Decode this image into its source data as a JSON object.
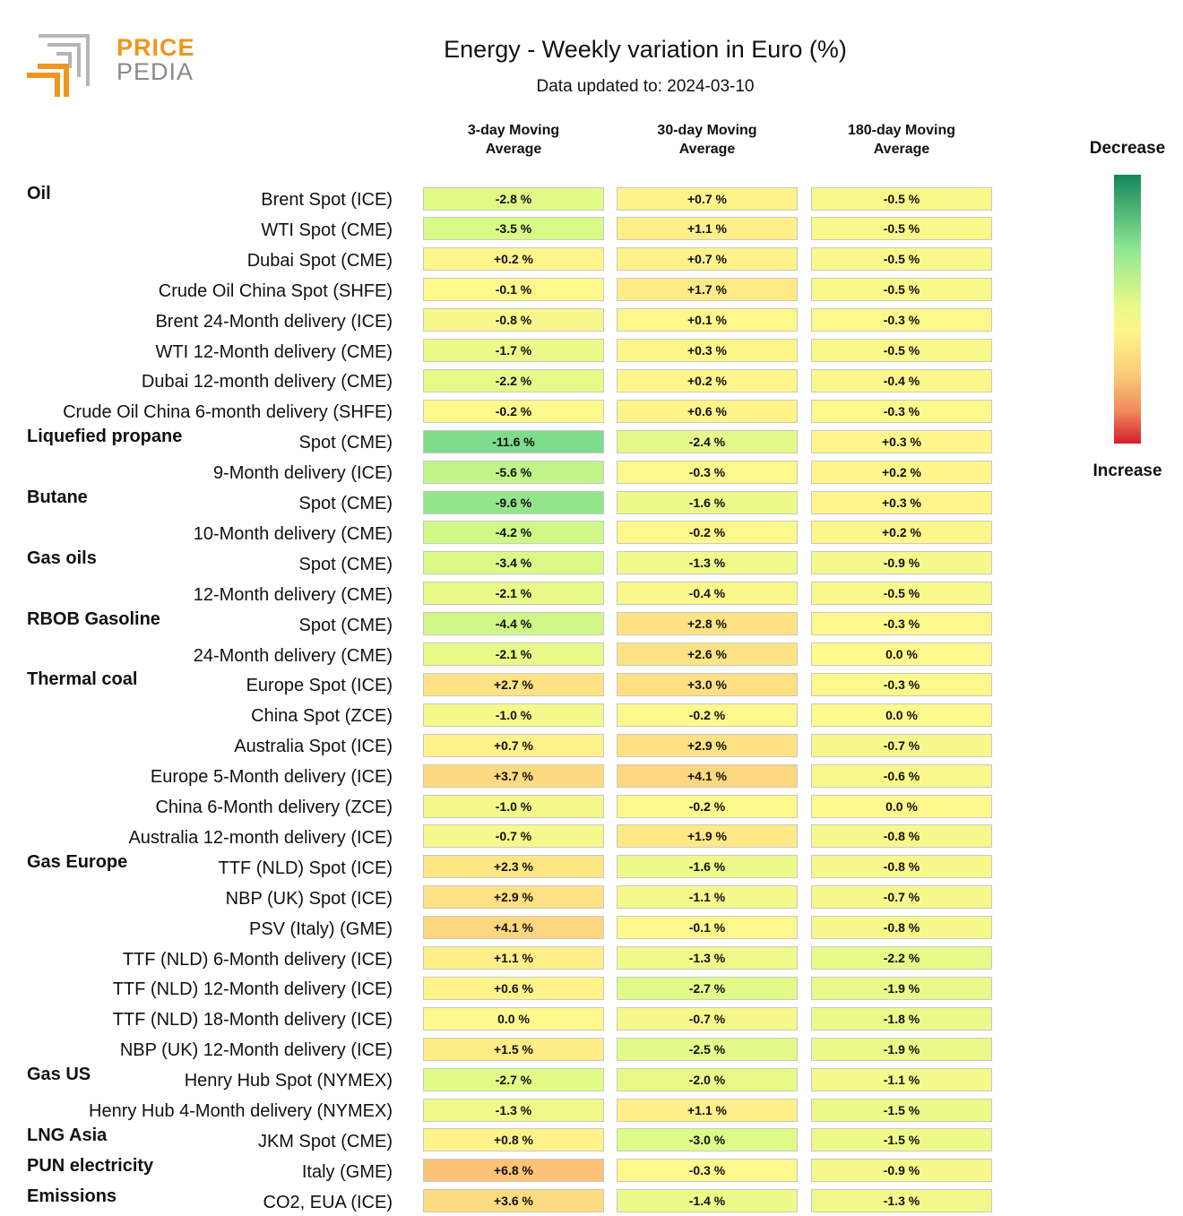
{
  "logo": {
    "line1": "PRICE",
    "line2": "PEDIA"
  },
  "header": {
    "title": "Energy - Weekly variation in Euro (%)",
    "subtitle": "Data updated to: 2024-03-10"
  },
  "columns": [
    {
      "line1": "3-day Moving",
      "line2": "Average"
    },
    {
      "line1": "30-day Moving",
      "line2": "Average"
    },
    {
      "line1": "180-day Moving",
      "line2": "Average"
    }
  ],
  "legend": {
    "top_label": "Decrease",
    "bottom_label": "Increase",
    "top_color": "#14875a",
    "mid_color": "#fff689",
    "bottom_color": "#d41d2a"
  },
  "chart_data": {
    "type": "table",
    "title": "Energy - Weekly variation in Euro (%)",
    "rows": [
      {
        "group": "Oil",
        "label": "Brent Spot (ICE)",
        "values": [
          "-2.8 %",
          "+0.7 %",
          "-0.5 %"
        ]
      },
      {
        "group": "",
        "label": "WTI Spot (CME)",
        "values": [
          "-3.5 %",
          "+1.1 %",
          "-0.5 %"
        ]
      },
      {
        "group": "",
        "label": "Dubai Spot (CME)",
        "values": [
          "+0.2 %",
          "+0.7 %",
          "-0.5 %"
        ]
      },
      {
        "group": "",
        "label": "Crude Oil China Spot (SHFE)",
        "values": [
          "-0.1 %",
          "+1.7 %",
          "-0.5 %"
        ]
      },
      {
        "group": "",
        "label": "Brent 24-Month delivery (ICE)",
        "values": [
          "-0.8 %",
          "+0.1 %",
          "-0.3 %"
        ]
      },
      {
        "group": "",
        "label": "WTI 12-Month delivery (CME)",
        "values": [
          "-1.7 %",
          "+0.3 %",
          "-0.5 %"
        ]
      },
      {
        "group": "",
        "label": "Dubai 12-month delivery (CME)",
        "values": [
          "-2.2 %",
          "+0.2 %",
          "-0.4 %"
        ]
      },
      {
        "group": "",
        "label": "Crude Oil China 6-month delivery (SHFE)",
        "values": [
          "-0.2 %",
          "+0.6 %",
          "-0.3 %"
        ]
      },
      {
        "group": "Liquefied propane",
        "label": "Spot (CME)",
        "values": [
          "-11.6 %",
          "-2.4 %",
          "+0.3 %"
        ]
      },
      {
        "group": "",
        "label": "9-Month delivery (ICE)",
        "values": [
          "-5.6 %",
          "-0.3 %",
          "+0.2 %"
        ]
      },
      {
        "group": "Butane",
        "label": "Spot (CME)",
        "values": [
          "-9.6 %",
          "-1.6 %",
          "+0.3 %"
        ]
      },
      {
        "group": "",
        "label": "10-Month delivery (CME)",
        "values": [
          "-4.2 %",
          "-0.2 %",
          "+0.2 %"
        ]
      },
      {
        "group": "Gas oils",
        "label": "Spot (CME)",
        "values": [
          "-3.4 %",
          "-1.3 %",
          "-0.9 %"
        ]
      },
      {
        "group": "",
        "label": "12-Month delivery (CME)",
        "values": [
          "-2.1 %",
          "-0.4 %",
          "-0.5 %"
        ]
      },
      {
        "group": "RBOB Gasoline",
        "label": "Spot (CME)",
        "values": [
          "-4.4 %",
          "+2.8 %",
          "-0.3 %"
        ]
      },
      {
        "group": "",
        "label": "24-Month delivery (CME)",
        "values": [
          "-2.1 %",
          "+2.6 %",
          "0.0 %"
        ]
      },
      {
        "group": "Thermal coal",
        "label": "Europe Spot (ICE)",
        "values": [
          "+2.7 %",
          "+3.0 %",
          "-0.3 %"
        ]
      },
      {
        "group": "",
        "label": "China Spot (ZCE)",
        "values": [
          "-1.0 %",
          "-0.2 %",
          "0.0 %"
        ]
      },
      {
        "group": "",
        "label": "Australia Spot (ICE)",
        "values": [
          "+0.7 %",
          "+2.9 %",
          "-0.7 %"
        ]
      },
      {
        "group": "",
        "label": "Europe 5-Month delivery (ICE)",
        "values": [
          "+3.7 %",
          "+4.1 %",
          "-0.6 %"
        ]
      },
      {
        "group": "",
        "label": "China 6-Month delivery (ZCE)",
        "values": [
          "-1.0 %",
          "-0.2 %",
          "0.0 %"
        ]
      },
      {
        "group": "",
        "label": "Australia 12-month delivery (ICE)",
        "values": [
          "-0.7 %",
          "+1.9 %",
          "-0.8 %"
        ]
      },
      {
        "group": "Gas Europe",
        "label": "TTF (NLD) Spot (ICE)",
        "values": [
          "+2.3 %",
          "-1.6 %",
          "-0.8 %"
        ]
      },
      {
        "group": "",
        "label": "NBP (UK) Spot (ICE)",
        "values": [
          "+2.9 %",
          "-1.1 %",
          "-0.7 %"
        ]
      },
      {
        "group": "",
        "label": "PSV (Italy) (GME)",
        "values": [
          "+4.1 %",
          "-0.1 %",
          "-0.8 %"
        ]
      },
      {
        "group": "",
        "label": "TTF (NLD) 6-Month delivery (ICE)",
        "values": [
          "+1.1 %",
          "-1.3 %",
          "-2.2 %"
        ]
      },
      {
        "group": "",
        "label": "TTF (NLD) 12-Month delivery (ICE)",
        "values": [
          "+0.6 %",
          "-2.7 %",
          "-1.9 %"
        ]
      },
      {
        "group": "",
        "label": "TTF (NLD) 18-Month delivery (ICE)",
        "values": [
          "0.0 %",
          "-0.7 %",
          "-1.8 %"
        ]
      },
      {
        "group": "",
        "label": "NBP (UK) 12-Month delivery (ICE)",
        "values": [
          "+1.5 %",
          "-2.5 %",
          "-1.9 %"
        ]
      },
      {
        "group": "Gas US",
        "label": "Henry Hub Spot (NYMEX)",
        "values": [
          "-2.7 %",
          "-2.0 %",
          "-1.1 %"
        ]
      },
      {
        "group": "",
        "label": "Henry Hub 4-Month delivery (NYMEX)",
        "values": [
          "-1.3 %",
          "+1.1 %",
          "-1.5 %"
        ]
      },
      {
        "group": "LNG Asia",
        "label": "JKM Spot (CME)",
        "values": [
          "+0.8 %",
          "-3.0 %",
          "-1.5 %"
        ]
      },
      {
        "group": "PUN electricity",
        "label": "Italy (GME)",
        "values": [
          "+6.8 %",
          "-0.3 %",
          "-0.9 %"
        ]
      },
      {
        "group": "Emissions",
        "label": "CO2, EUA (ICE)",
        "values": [
          "+3.6 %",
          "-1.4 %",
          "-1.3 %"
        ]
      }
    ]
  }
}
